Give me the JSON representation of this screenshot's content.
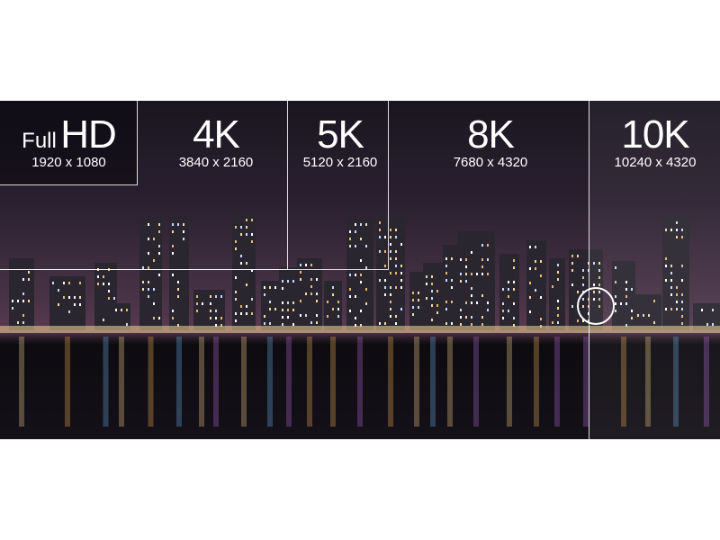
{
  "resolutions": [
    {
      "name_small": "Full",
      "name": "HD",
      "size": "1920 x 1080"
    },
    {
      "name": "4K",
      "size": "3840 x 2160"
    },
    {
      "name": "5K",
      "size": "5120 x 2160"
    },
    {
      "name": "8K",
      "size": "7680 x 4320"
    },
    {
      "name": "10K",
      "size": "10240 x 4320"
    }
  ],
  "colors": {
    "frame": "#ffffff",
    "sky": "#4a3448",
    "water": "#141018"
  }
}
